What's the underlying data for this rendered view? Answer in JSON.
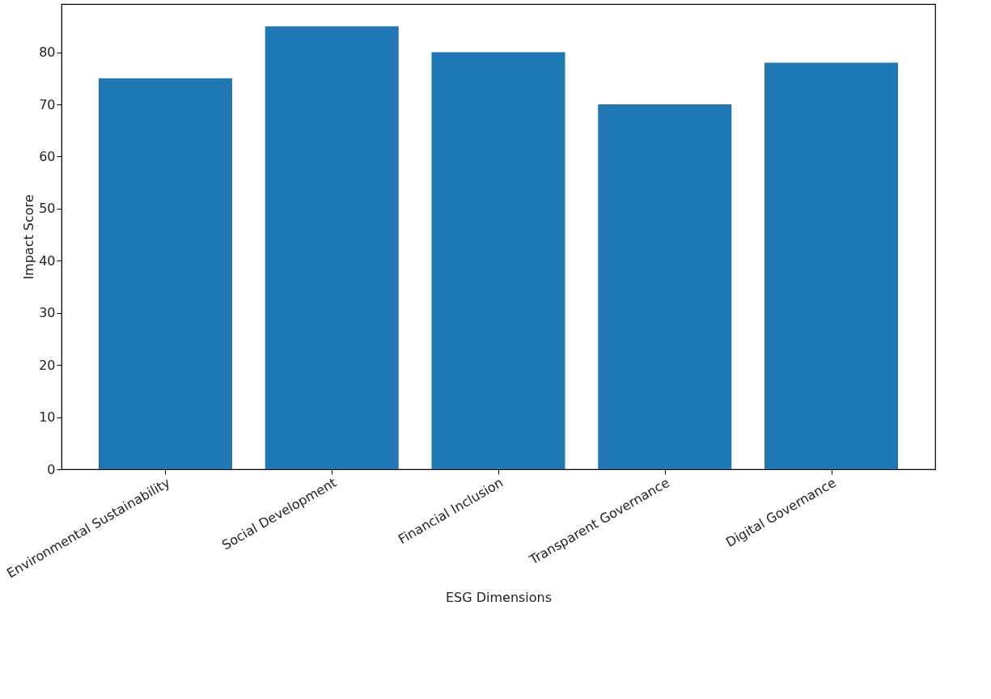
{
  "chart_data": {
    "type": "bar",
    "xlabel": "ESG Dimensions",
    "ylabel": "Impact Score",
    "categories": [
      "Environmental Sustainability",
      "Social Development",
      "Financial Inclusion",
      "Transparent Governance",
      "Digital Governance"
    ],
    "values": [
      75,
      85,
      80,
      70,
      78
    ],
    "color": "#1f77b4",
    "ylim": [
      0,
      89.25
    ],
    "yticks": [
      0,
      10,
      20,
      30,
      40,
      50,
      60,
      70,
      80
    ],
    "grid": false
  }
}
